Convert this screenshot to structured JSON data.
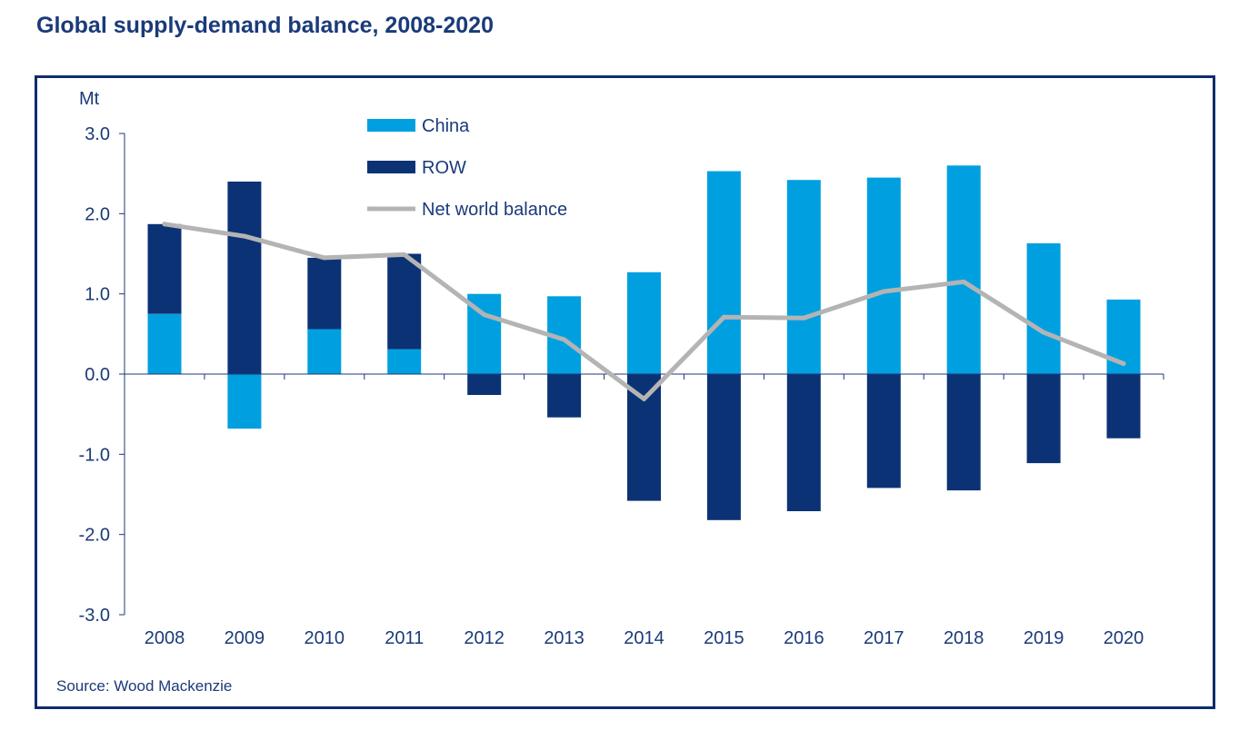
{
  "title": "Global supply-demand balance, 2008-2020",
  "source": "Source: Wood Mackenzie",
  "colors": {
    "china": "#00a0e0",
    "row": "#0b3275",
    "net": "#b4b4b4",
    "title": "#1a3a7a",
    "frame": "#0d2d6b",
    "axis": "#1a3a7a"
  },
  "chart_data": {
    "type": "bar",
    "stacked": true,
    "title": "Global supply-demand balance, 2008-2020",
    "ylabel": "Mt",
    "xlabel": "",
    "ylim": [
      -3.0,
      3.0
    ],
    "yticks": [
      "3.0",
      "2.0",
      "1.0",
      "0.0",
      "-1.0",
      "-2.0",
      "-3.0"
    ],
    "ytick_values": [
      3,
      2,
      1,
      0,
      -1,
      -2,
      -3
    ],
    "grid": false,
    "legend_position": "top-center",
    "categories": [
      "2008",
      "2009",
      "2010",
      "2011",
      "2012",
      "2013",
      "2014",
      "2015",
      "2016",
      "2017",
      "2018",
      "2019",
      "2020"
    ],
    "series": [
      {
        "name": "China",
        "type": "bar",
        "values": [
          0.75,
          -0.68,
          0.56,
          0.31,
          1.0,
          0.97,
          1.27,
          2.53,
          2.42,
          2.45,
          2.6,
          1.63,
          0.93
        ]
      },
      {
        "name": "ROW",
        "type": "bar",
        "values": [
          1.12,
          2.4,
          0.89,
          1.19,
          -0.26,
          -0.54,
          -1.58,
          -1.82,
          -1.71,
          -1.42,
          -1.45,
          -1.11,
          -0.8
        ]
      },
      {
        "name": "Net world balance",
        "type": "line",
        "values": [
          1.87,
          1.72,
          1.45,
          1.49,
          0.74,
          0.43,
          -0.31,
          0.71,
          0.7,
          1.03,
          1.15,
          0.52,
          0.13
        ]
      }
    ]
  }
}
